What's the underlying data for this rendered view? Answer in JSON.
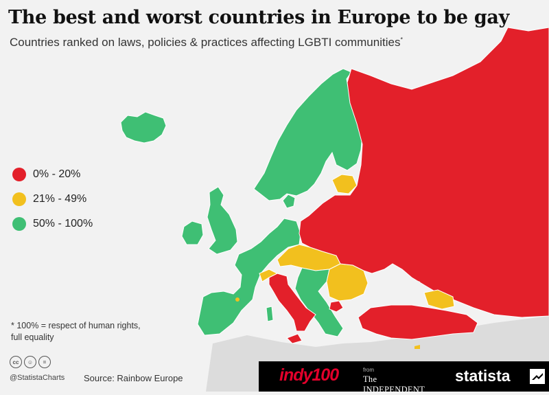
{
  "title": "The best and worst countries in Europe to be gay",
  "subtitle": "Countries ranked on laws, policies & practices affecting LGBTI communities",
  "subtitle_mark": "*",
  "legend": [
    {
      "label": "0% - 20%",
      "color": "#e3202a"
    },
    {
      "label": "21% - 49%",
      "color": "#f2c01e"
    },
    {
      "label": "50% - 100%",
      "color": "#3fbf74"
    }
  ],
  "footnote": "* 100% = respect of human rights, full equality",
  "cc_icons": [
    "cc-icon",
    "by-icon",
    "nd-icon"
  ],
  "handle": "@StatistaCharts",
  "source": "Source: Rainbow Europe",
  "branding": {
    "indy": "indy100",
    "from": "from",
    "independent": "The INDEPENDENT",
    "statista": "statista"
  },
  "colors": {
    "sea": "#f2f2f2",
    "land_other": "#dcdcdc",
    "red": "#e3202a",
    "yellow": "#f2c01e",
    "green": "#3fbf74",
    "border": "#ffffff"
  }
}
